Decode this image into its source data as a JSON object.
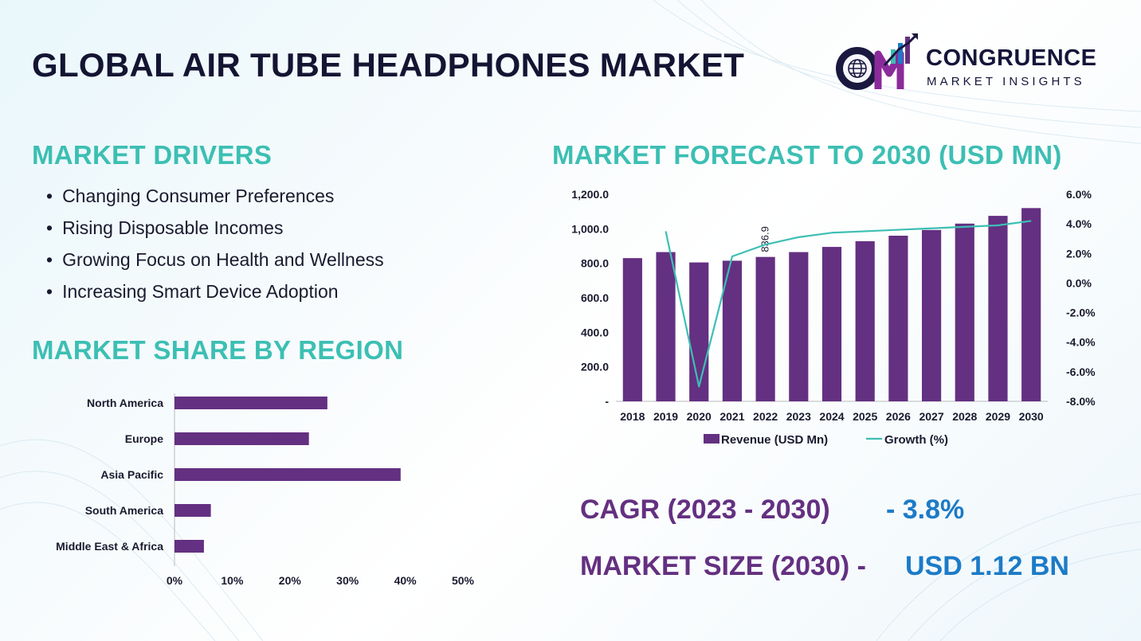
{
  "header": {
    "title": "GLOBAL AIR TUBE HEADPHONES MARKET",
    "logo": {
      "name": "CONGRUENCE",
      "tagline": "MARKET INSIGHTS",
      "icon": "cm-globe-logo-icon"
    }
  },
  "drivers": {
    "heading": "MARKET DRIVERS",
    "items": [
      "Changing Consumer Preferences",
      "Rising Disposable Incomes",
      "Growing Focus on Health and Wellness",
      "Increasing Smart Device Adoption"
    ]
  },
  "region_section": {
    "heading": "MARKET SHARE BY REGION"
  },
  "forecast_section": {
    "heading": "MARKET FORECAST TO 2030 (USD MN)"
  },
  "stats": {
    "cagr_label": "CAGR (2023 - 2030)",
    "cagr_value": "- 3.8%",
    "size_label": "MARKET SIZE (2030) -",
    "size_value": "USD 1.12 BN"
  },
  "colors": {
    "bar": "#643081",
    "line": "#3cbfb3",
    "heading": "#3cbfb3",
    "title": "#141433",
    "accent_blue": "#1c7bc7"
  },
  "chart_data": [
    {
      "type": "bar",
      "orientation": "horizontal",
      "categories": [
        "North America",
        "Europe",
        "Asia Pacific",
        "South America",
        "Middle East & Africa"
      ],
      "values": [
        26.5,
        23.3,
        39.2,
        6.3,
        5.1
      ],
      "unit": "%",
      "xlim": [
        0,
        50
      ],
      "xticks": [
        "0%",
        "10%",
        "20%",
        "30%",
        "40%",
        "50%"
      ],
      "grid": false,
      "legend": "none"
    },
    {
      "type": "bar",
      "categories": [
        "2018",
        "2019",
        "2020",
        "2021",
        "2022",
        "2023",
        "2024",
        "2025",
        "2026",
        "2027",
        "2028",
        "2029",
        "2030"
      ],
      "series": [
        {
          "name": "Revenue (USD Mn)",
          "type": "bar",
          "axis": "left",
          "values": [
            830,
            865,
            805,
            815,
            836.9,
            865,
            895,
            928,
            960,
            993,
            1030,
            1075,
            1120
          ]
        },
        {
          "name": "Growth (%)",
          "type": "line",
          "axis": "right",
          "values": [
            null,
            3.5,
            -7.0,
            1.8,
            2.6,
            3.1,
            3.4,
            3.5,
            3.6,
            3.7,
            3.8,
            3.9,
            4.2
          ]
        }
      ],
      "data_labels": [
        {
          "category": "2022",
          "text": "836.9"
        }
      ],
      "ylim_left": [
        0,
        1200
      ],
      "yticks_left": [
        "-",
        "200.0",
        "400.0",
        "600.0",
        "800.0",
        "1,000.0",
        "1,200.0"
      ],
      "ylim_right": [
        -8,
        6
      ],
      "yticks_right": [
        "-8.0%",
        "-6.0%",
        "-4.0%",
        "-2.0%",
        "0.0%",
        "2.0%",
        "4.0%",
        "6.0%"
      ],
      "grid": false,
      "legend": "bottom"
    }
  ]
}
